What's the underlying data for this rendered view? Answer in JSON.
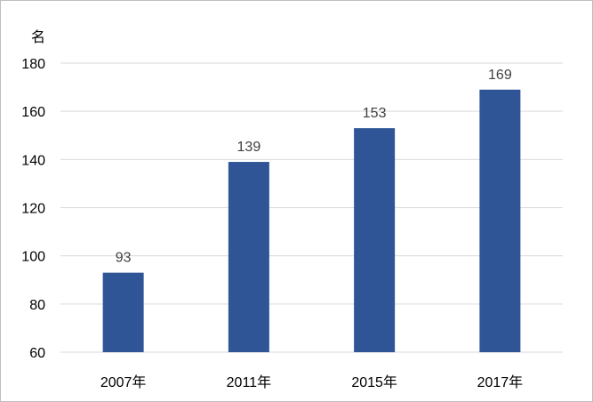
{
  "chart_data": {
    "type": "bar",
    "categories": [
      "2007年",
      "2011年",
      "2015年",
      "2017年"
    ],
    "values": [
      93,
      139,
      153,
      169
    ],
    "data_labels": [
      "93",
      "139",
      "153",
      "169"
    ],
    "ylabel": "名",
    "ylim": [
      60,
      180
    ],
    "yticks": [
      "60",
      "80",
      "100",
      "120",
      "140",
      "160",
      "180"
    ],
    "ytick_values": [
      60,
      80,
      100,
      120,
      140,
      160,
      180
    ],
    "grid": true,
    "bar_color": "#2f5597",
    "grid_color": "#d9d9d9"
  }
}
